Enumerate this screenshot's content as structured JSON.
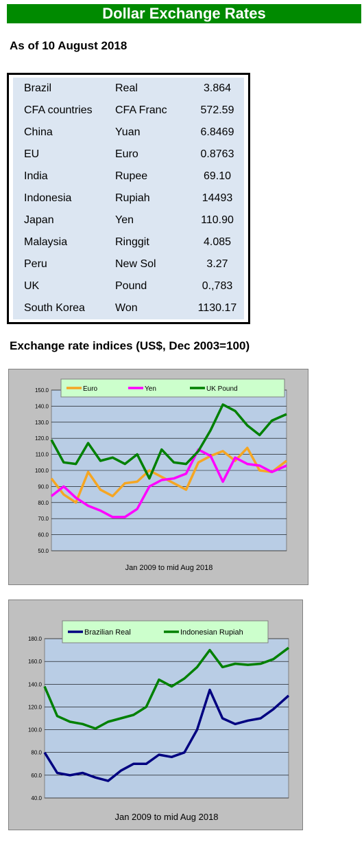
{
  "header": {
    "title": "Dollar Exchange Rates"
  },
  "as_of": "As of 10 August 2018",
  "rates": [
    {
      "country": "Brazil",
      "currency": "Real",
      "rate": "3.864"
    },
    {
      "country": "CFA countries",
      "currency": "CFA Franc",
      "rate": "572.59"
    },
    {
      "country": "China",
      "currency": "Yuan",
      "rate": "6.8469"
    },
    {
      "country": "EU",
      "currency": "Euro",
      "rate": "0.8763"
    },
    {
      "country": "India",
      "currency": "Rupee",
      "rate": "69.10"
    },
    {
      "country": "Indonesia",
      "currency": "Rupiah",
      "rate": "14493"
    },
    {
      "country": "Japan",
      "currency": "Yen",
      "rate": "110.90"
    },
    {
      "country": "Malaysia",
      "currency": "Ringgit",
      "rate": "4.085"
    },
    {
      "country": "Peru",
      "currency": "New Sol",
      "rate": "3.27"
    },
    {
      "country": "UK",
      "currency": "Pound",
      "rate": "0.,783"
    },
    {
      "country": "South Korea",
      "currency": "Won",
      "rate": "1130.17"
    }
  ],
  "indices_title": "Exchange rate indices (US$, Dec 2003=100)",
  "colors": {
    "banner": "#008a00",
    "plot_bg": "#b9cde5",
    "frame_bg": "#c0c0c0",
    "legend_bg": "#ccffcc"
  },
  "chart_data": [
    {
      "type": "line",
      "xlabel": "Jan 2009  to mid Aug 2018",
      "ylim": [
        50,
        150
      ],
      "yticks": [
        "50.0",
        "60.0",
        "70.0",
        "80.0",
        "90.0",
        "100.0",
        "110.0",
        "120.0",
        "130.0",
        "140.0",
        "150.0"
      ],
      "grid": true,
      "legend": "top",
      "x": [
        2009.0,
        2009.5,
        2010.0,
        2010.5,
        2011.0,
        2011.5,
        2012.0,
        2012.5,
        2013.0,
        2013.5,
        2014.0,
        2014.5,
        2015.0,
        2015.5,
        2016.0,
        2016.5,
        2017.0,
        2017.5,
        2018.0,
        2018.6
      ],
      "series": [
        {
          "name": "Euro",
          "color": "#f5a623",
          "values": [
            95,
            85,
            80,
            99,
            88,
            84,
            92,
            93,
            100,
            96,
            92,
            88,
            105,
            109,
            112,
            106,
            114,
            100,
            99,
            106
          ]
        },
        {
          "name": "Yen",
          "color": "#ff00ff",
          "values": [
            84,
            90,
            83,
            78,
            75,
            71,
            71,
            76,
            90,
            94,
            95,
            98,
            113,
            109,
            93,
            108,
            104,
            103,
            99,
            103
          ]
        },
        {
          "name": "UK Pound",
          "color": "#008000",
          "values": [
            119,
            105,
            104,
            117,
            106,
            108,
            104,
            110,
            95,
            113,
            105,
            104,
            112,
            125,
            141,
            137,
            128,
            122,
            131,
            135
          ]
        }
      ]
    },
    {
      "type": "line",
      "xlabel": "Jan 2009  to mid Aug 2018",
      "ylim": [
        40,
        180
      ],
      "yticks": [
        "40.0",
        "60.0",
        "80.0",
        "100.0",
        "120.0",
        "140.0",
        "160.0",
        "180.0"
      ],
      "grid": true,
      "legend": "top",
      "x": [
        2009.0,
        2009.5,
        2010.0,
        2010.5,
        2011.0,
        2011.5,
        2012.0,
        2012.5,
        2013.0,
        2013.5,
        2014.0,
        2014.5,
        2015.0,
        2015.5,
        2016.0,
        2016.5,
        2017.0,
        2017.5,
        2018.0,
        2018.6
      ],
      "series": [
        {
          "name": "Brazilian Real",
          "color": "#000080",
          "values": [
            80,
            62,
            60,
            62,
            58,
            55,
            64,
            70,
            70,
            78,
            76,
            80,
            100,
            135,
            110,
            105,
            108,
            110,
            118,
            130
          ]
        },
        {
          "name": "Indonesian Rupiah",
          "color": "#008000",
          "values": [
            138,
            112,
            107,
            105,
            101,
            107,
            110,
            113,
            120,
            144,
            138,
            145,
            155,
            170,
            155,
            158,
            157,
            158,
            162,
            172
          ]
        }
      ]
    }
  ]
}
